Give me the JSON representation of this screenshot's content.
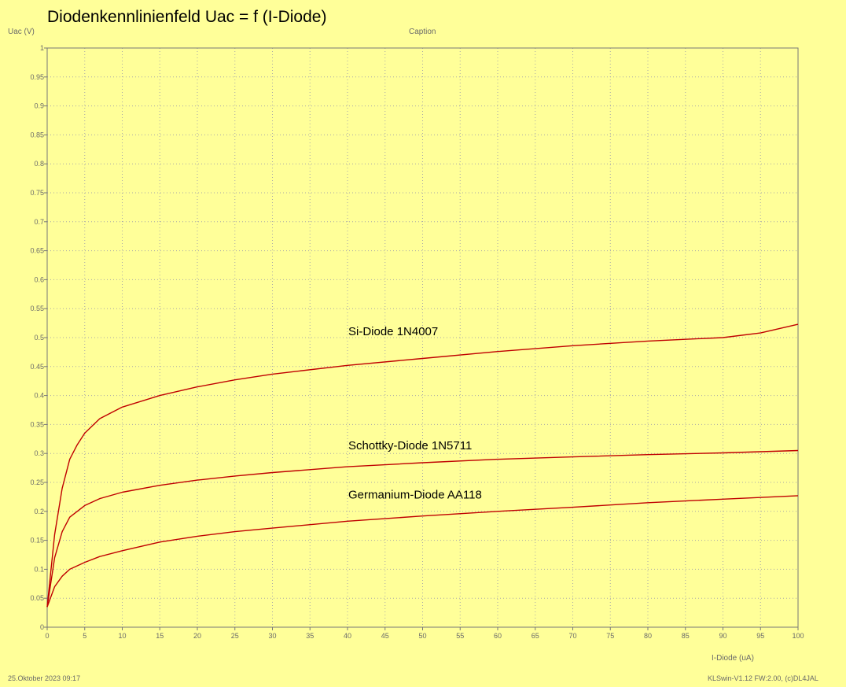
{
  "chart_data": {
    "type": "line",
    "title": "Diodenkennlinienfeld Uac = f (I-Diode)",
    "caption": "Caption",
    "xlabel": "I-Diode (uA)",
    "ylabel": "Uac (V)",
    "xlim": [
      0,
      100
    ],
    "ylim": [
      0,
      1
    ],
    "x_ticks": [
      0,
      5,
      10,
      15,
      20,
      25,
      30,
      35,
      40,
      45,
      50,
      55,
      60,
      65,
      70,
      75,
      80,
      85,
      90,
      95,
      100
    ],
    "y_ticks": [
      0,
      0.05,
      0.1,
      0.15,
      0.2,
      0.25,
      0.3,
      0.35,
      0.4,
      0.45,
      0.5,
      0.55,
      0.6,
      0.65,
      0.7,
      0.75,
      0.8,
      0.85,
      0.9,
      0.95,
      1
    ],
    "grid": true,
    "line_color": "#c00000",
    "series": [
      {
        "annotation": "Si-Diode 1N4007",
        "x": [
          0,
          1,
          2,
          3,
          4,
          5,
          7,
          10,
          15,
          20,
          25,
          30,
          40,
          50,
          60,
          70,
          80,
          90,
          95,
          100
        ],
        "values": [
          0.035,
          0.16,
          0.24,
          0.29,
          0.315,
          0.335,
          0.36,
          0.38,
          0.4,
          0.415,
          0.427,
          0.437,
          0.452,
          0.464,
          0.476,
          0.486,
          0.494,
          0.5,
          0.508,
          0.523
        ]
      },
      {
        "annotation": "Schottky-Diode 1N5711",
        "x": [
          0,
          1,
          2,
          3,
          5,
          7,
          10,
          15,
          20,
          25,
          30,
          40,
          50,
          60,
          70,
          80,
          90,
          100
        ],
        "values": [
          0.035,
          0.12,
          0.165,
          0.19,
          0.21,
          0.222,
          0.233,
          0.245,
          0.254,
          0.261,
          0.267,
          0.277,
          0.284,
          0.29,
          0.294,
          0.298,
          0.301,
          0.305
        ]
      },
      {
        "annotation": "Germanium-Diode AA118",
        "x": [
          0,
          1,
          2,
          3,
          5,
          7,
          10,
          15,
          20,
          25,
          30,
          40,
          50,
          60,
          70,
          80,
          90,
          100
        ],
        "values": [
          0.035,
          0.07,
          0.088,
          0.1,
          0.112,
          0.122,
          0.132,
          0.147,
          0.157,
          0.165,
          0.171,
          0.183,
          0.192,
          0.2,
          0.207,
          0.215,
          0.221,
          0.227
        ]
      }
    ]
  },
  "footer": {
    "date": "25.Oktober 2023 09:17",
    "software": "KLSwin-V1.12 FW:2.00, (c)DL4JAL"
  }
}
